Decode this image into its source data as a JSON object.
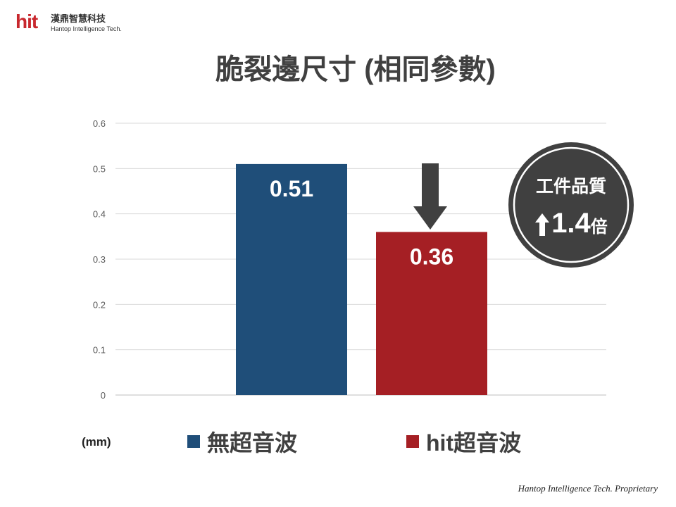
{
  "logo": {
    "brand": "hit",
    "chinese_name": "漢鼎智慧科技",
    "english_name": "Hantop Intelligence Tech."
  },
  "slide": {
    "title": "脆裂邊尺寸 (相同參數)",
    "footer": "Hantop Intelligence Tech. Proprietary"
  },
  "badge": {
    "line1": "工件品質",
    "value": "1.4",
    "unit": "倍",
    "icon": "up-arrow-icon"
  },
  "chart_data": {
    "type": "bar",
    "categories": [
      "無超音波",
      "hit超音波"
    ],
    "values": [
      0.51,
      0.36
    ],
    "data_labels": [
      "0.51",
      "0.36"
    ],
    "colors": [
      "#1f4e79",
      "#a51f24"
    ],
    "y_ticks": [
      "0",
      "0.1",
      "0.2",
      "0.3",
      "0.4",
      "0.5",
      "0.6"
    ],
    "ylim": [
      0,
      0.6
    ],
    "unit_label": "(mm)",
    "grid": true,
    "legend_position": "bottom",
    "annotation": "down-arrow-icon"
  }
}
